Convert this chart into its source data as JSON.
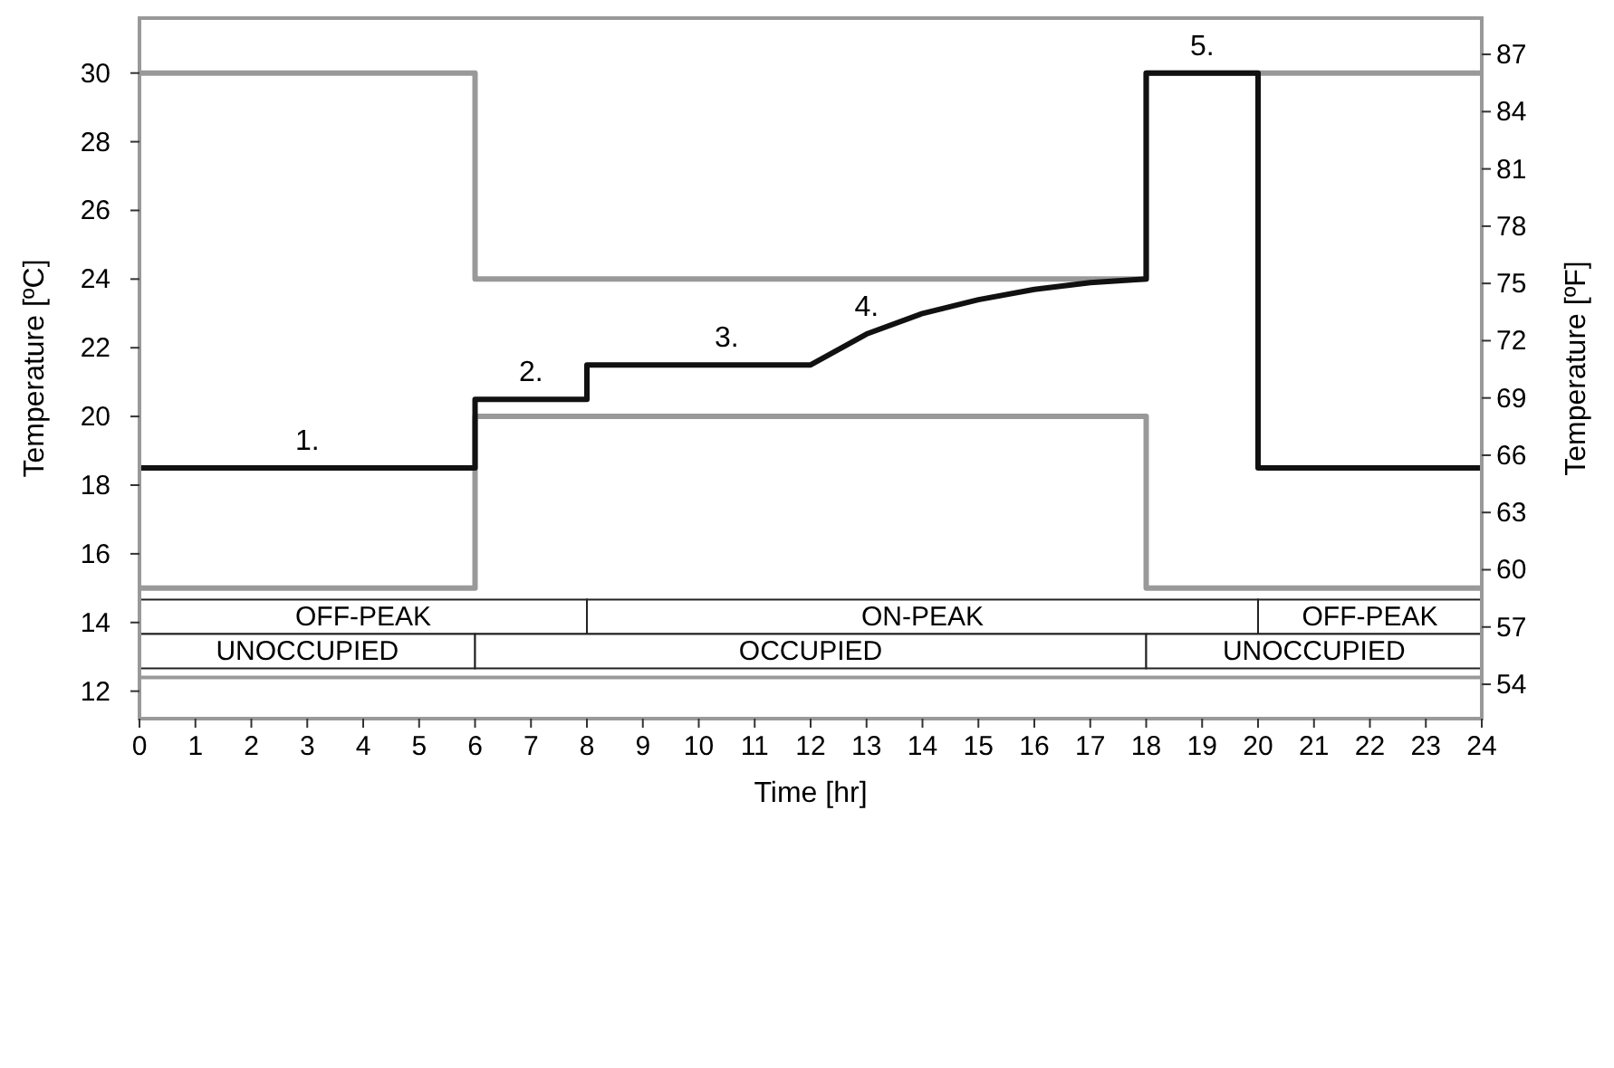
{
  "chart_data": {
    "type": "line",
    "xlabel": "Time [hr]",
    "ylabel": "Temperature [ºC]",
    "y2label": "Temperature [ºF]",
    "xlim": [
      0,
      24
    ],
    "xticks": [
      0,
      1,
      2,
      3,
      4,
      5,
      6,
      7,
      8,
      9,
      10,
      11,
      12,
      13,
      14,
      15,
      16,
      17,
      18,
      19,
      20,
      21,
      22,
      23,
      24
    ],
    "ylim": [
      11.2,
      31.6
    ],
    "yticks": [
      12,
      14,
      16,
      18,
      20,
      22,
      24,
      26,
      28,
      30
    ],
    "y2lim": [
      52.2,
      88.9
    ],
    "y2ticks": [
      54,
      57,
      60,
      63,
      66,
      69,
      72,
      75,
      78,
      81,
      84,
      87
    ],
    "grid": false,
    "marker": "none",
    "line_style": "solid",
    "ref_lines": [
      {
        "axis": "y",
        "value": 12.4,
        "color": "#999999"
      }
    ],
    "series": [
      {
        "color": "#999999",
        "x": [
          0,
          6,
          6,
          18,
          18,
          24
        ],
        "values": [
          30,
          30,
          24,
          24,
          30,
          30
        ]
      },
      {
        "color": "#999999",
        "x": [
          0,
          6,
          6,
          18,
          18,
          24
        ],
        "values": [
          15,
          15,
          20,
          20,
          15,
          15
        ]
      },
      {
        "color": "#111111",
        "x": [
          0,
          6,
          6,
          8,
          8,
          12,
          13,
          14,
          15,
          16,
          17,
          18,
          18,
          20,
          20,
          24
        ],
        "values": [
          18.5,
          18.5,
          20.5,
          20.5,
          21.5,
          21.5,
          22.4,
          23.0,
          23.4,
          23.7,
          23.9,
          24,
          30,
          30,
          18.5,
          18.5
        ]
      }
    ],
    "bands": [
      {
        "axis": "x",
        "from": 0,
        "to": 8,
        "label": "OFF-PEAK"
      },
      {
        "axis": "x",
        "from": 8,
        "to": 20,
        "label": "ON-PEAK"
      },
      {
        "axis": "x",
        "from": 20,
        "to": 24,
        "label": "OFF-PEAK"
      },
      {
        "axis": "x",
        "from": 0,
        "to": 6,
        "label": "UNOCCUPIED"
      },
      {
        "axis": "x",
        "from": 6,
        "to": 18,
        "label": "OCCUPIED"
      },
      {
        "axis": "x",
        "from": 18,
        "to": 24,
        "label": "UNOCCUPIED"
      }
    ],
    "annotations": [
      {
        "text": "1.",
        "x": 3,
        "y": 18.5
      },
      {
        "text": "2.",
        "x": 7,
        "y": 20.5
      },
      {
        "text": "3.",
        "x": 10.5,
        "y": 21.5
      },
      {
        "text": "4.",
        "x": 13,
        "y": 22.4
      },
      {
        "text": "5.",
        "x": 19,
        "y": 30
      }
    ]
  }
}
